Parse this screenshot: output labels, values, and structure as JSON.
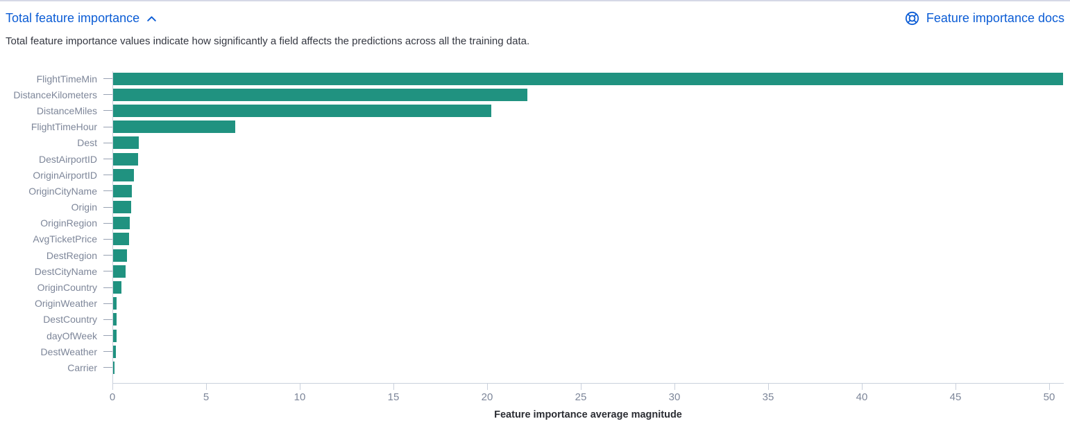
{
  "header": {
    "title": "Total feature importance",
    "docs_link": "Feature importance docs",
    "collapse_icon": "chevron-up-icon",
    "docs_icon": "lifebuoy-icon"
  },
  "subtitle": "Total feature importance values indicate how significantly a field affects the predictions across all the training data.",
  "colors": {
    "bar": "#209280",
    "link": "#0b5cd5",
    "axis_label": "#7d8699",
    "axis_line": "#c9d0dc",
    "body_text": "#343741"
  },
  "chart_data": {
    "type": "bar",
    "orientation": "horizontal",
    "title": "",
    "xlabel": "Feature importance average magnitude",
    "ylabel": "",
    "categories": [
      "FlightTimeMin",
      "DistanceKilometers",
      "DistanceMiles",
      "FlightTimeHour",
      "Dest",
      "DestAirportID",
      "OriginAirportID",
      "OriginCityName",
      "Origin",
      "OriginRegion",
      "AvgTicketPrice",
      "DestRegion",
      "DestCityName",
      "OriginCountry",
      "OriginWeather",
      "DestCountry",
      "dayOfWeek",
      "DestWeather",
      "Carrier"
    ],
    "values": [
      50.7,
      22.1,
      20.2,
      6.5,
      1.36,
      1.33,
      1.1,
      1.0,
      0.98,
      0.9,
      0.85,
      0.75,
      0.65,
      0.43,
      0.2,
      0.18,
      0.17,
      0.14,
      0.06
    ],
    "xlim": [
      0,
      50.8
    ],
    "xticks": [
      0,
      5,
      10,
      15,
      20,
      25,
      30,
      35,
      40,
      45,
      50
    ],
    "grid": false,
    "legend": "none"
  }
}
